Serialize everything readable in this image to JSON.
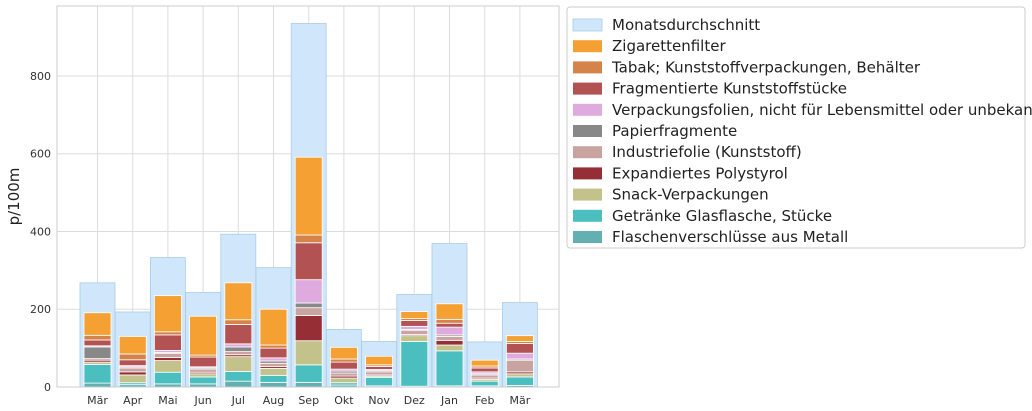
{
  "chart_data": {
    "type": "bar",
    "title": "",
    "xlabel": "",
    "ylabel": "p/100m",
    "ylim": [
      0,
      980
    ],
    "yticks": [
      0,
      200,
      400,
      600,
      800
    ],
    "grid": true,
    "legend_placement": "outside-right-top",
    "categories": [
      "Mär",
      "Apr",
      "Mai",
      "Jun",
      "Jul",
      "Aug",
      "Sep",
      "Okt",
      "Nov",
      "Dez",
      "Jan",
      "Feb",
      "Mär"
    ],
    "background_series": {
      "name": "Monatsdurchschnitt",
      "color": "#cfe6fb",
      "values": [
        268,
        193,
        333,
        243,
        393,
        307,
        935,
        148,
        117,
        238,
        369,
        116,
        217
      ]
    },
    "series": [
      {
        "name": "Flaschenverschlüsse aus Metall",
        "color": "#62b0b2",
        "values": [
          10,
          6,
          8,
          8,
          15,
          12,
          12,
          5,
          3,
          2,
          3,
          3,
          4
        ]
      },
      {
        "name": "Getränke Glasflasche, Stücke",
        "color": "#4bbfbf",
        "values": [
          48,
          5,
          30,
          18,
          25,
          18,
          45,
          6,
          22,
          115,
          90,
          12,
          22
        ]
      },
      {
        "name": "Snack-Verpackungen",
        "color": "#c3c28a",
        "values": [
          6,
          20,
          30,
          8,
          38,
          18,
          62,
          12,
          3,
          15,
          15,
          5,
          8
        ]
      },
      {
        "name": "Expandiertes Polystyrol",
        "color": "#952e35",
        "values": [
          5,
          8,
          8,
          4,
          5,
          5,
          65,
          5,
          3,
          3,
          12,
          3,
          5
        ]
      },
      {
        "name": "Industriefolie (Kunststoff)",
        "color": "#c8a3a0",
        "values": [
          4,
          10,
          10,
          8,
          8,
          8,
          20,
          8,
          8,
          10,
          10,
          8,
          30
        ]
      },
      {
        "name": "Papierfragmente",
        "color": "#888888",
        "values": [
          30,
          3,
          3,
          3,
          12,
          6,
          12,
          5,
          3,
          3,
          4,
          3,
          3
        ]
      },
      {
        "name": "Verpackungsfolien, nicht für Lebensmittel oder unbekannt",
        "color": "#dfaade",
        "values": [
          3,
          3,
          5,
          3,
          8,
          8,
          60,
          5,
          3,
          8,
          20,
          5,
          15
        ]
      },
      {
        "name": "Fragmentierte Kunststoffstücke",
        "color": "#b25252",
        "values": [
          15,
          15,
          40,
          25,
          50,
          25,
          95,
          18,
          8,
          15,
          10,
          10,
          25
        ]
      },
      {
        "name": "Tabak; Kunststoffverpackungen, Behälter",
        "color": "#d4844a",
        "values": [
          12,
          15,
          8,
          5,
          12,
          8,
          20,
          8,
          4,
          5,
          10,
          5,
          5
        ]
      },
      {
        "name": "Zigarettenfilter",
        "color": "#f5a033",
        "values": [
          58,
          45,
          93,
          100,
          95,
          92,
          200,
          30,
          22,
          18,
          40,
          15,
          15
        ]
      }
    ]
  }
}
